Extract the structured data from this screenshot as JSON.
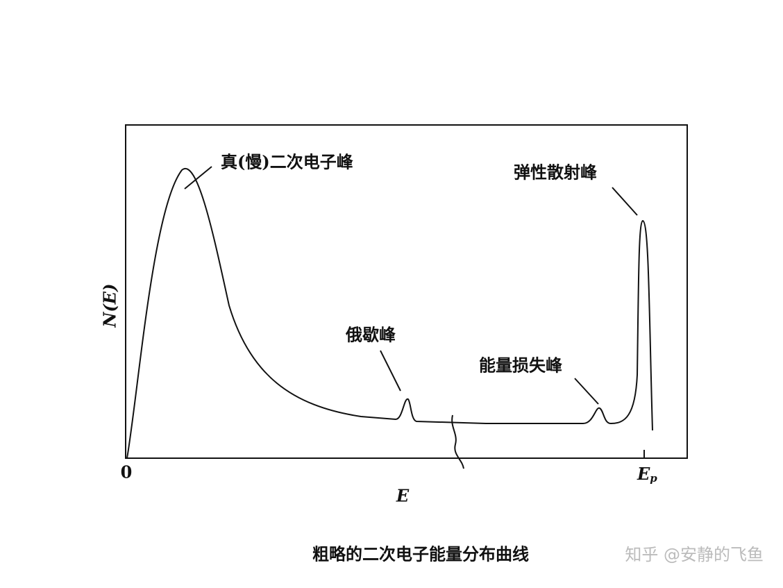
{
  "axes": {
    "y_label": "N(E)",
    "x_label": "E",
    "origin": "0",
    "end_label": "E",
    "end_label_sub": "p"
  },
  "annotations": [
    "真(慢)二次电子峰",
    "弹性散射峰",
    "俄歇峰",
    "能量损失峰"
  ],
  "caption": "粗略的二次电子能量分布曲线",
  "watermark": "知乎 @安静的飞鱼"
}
